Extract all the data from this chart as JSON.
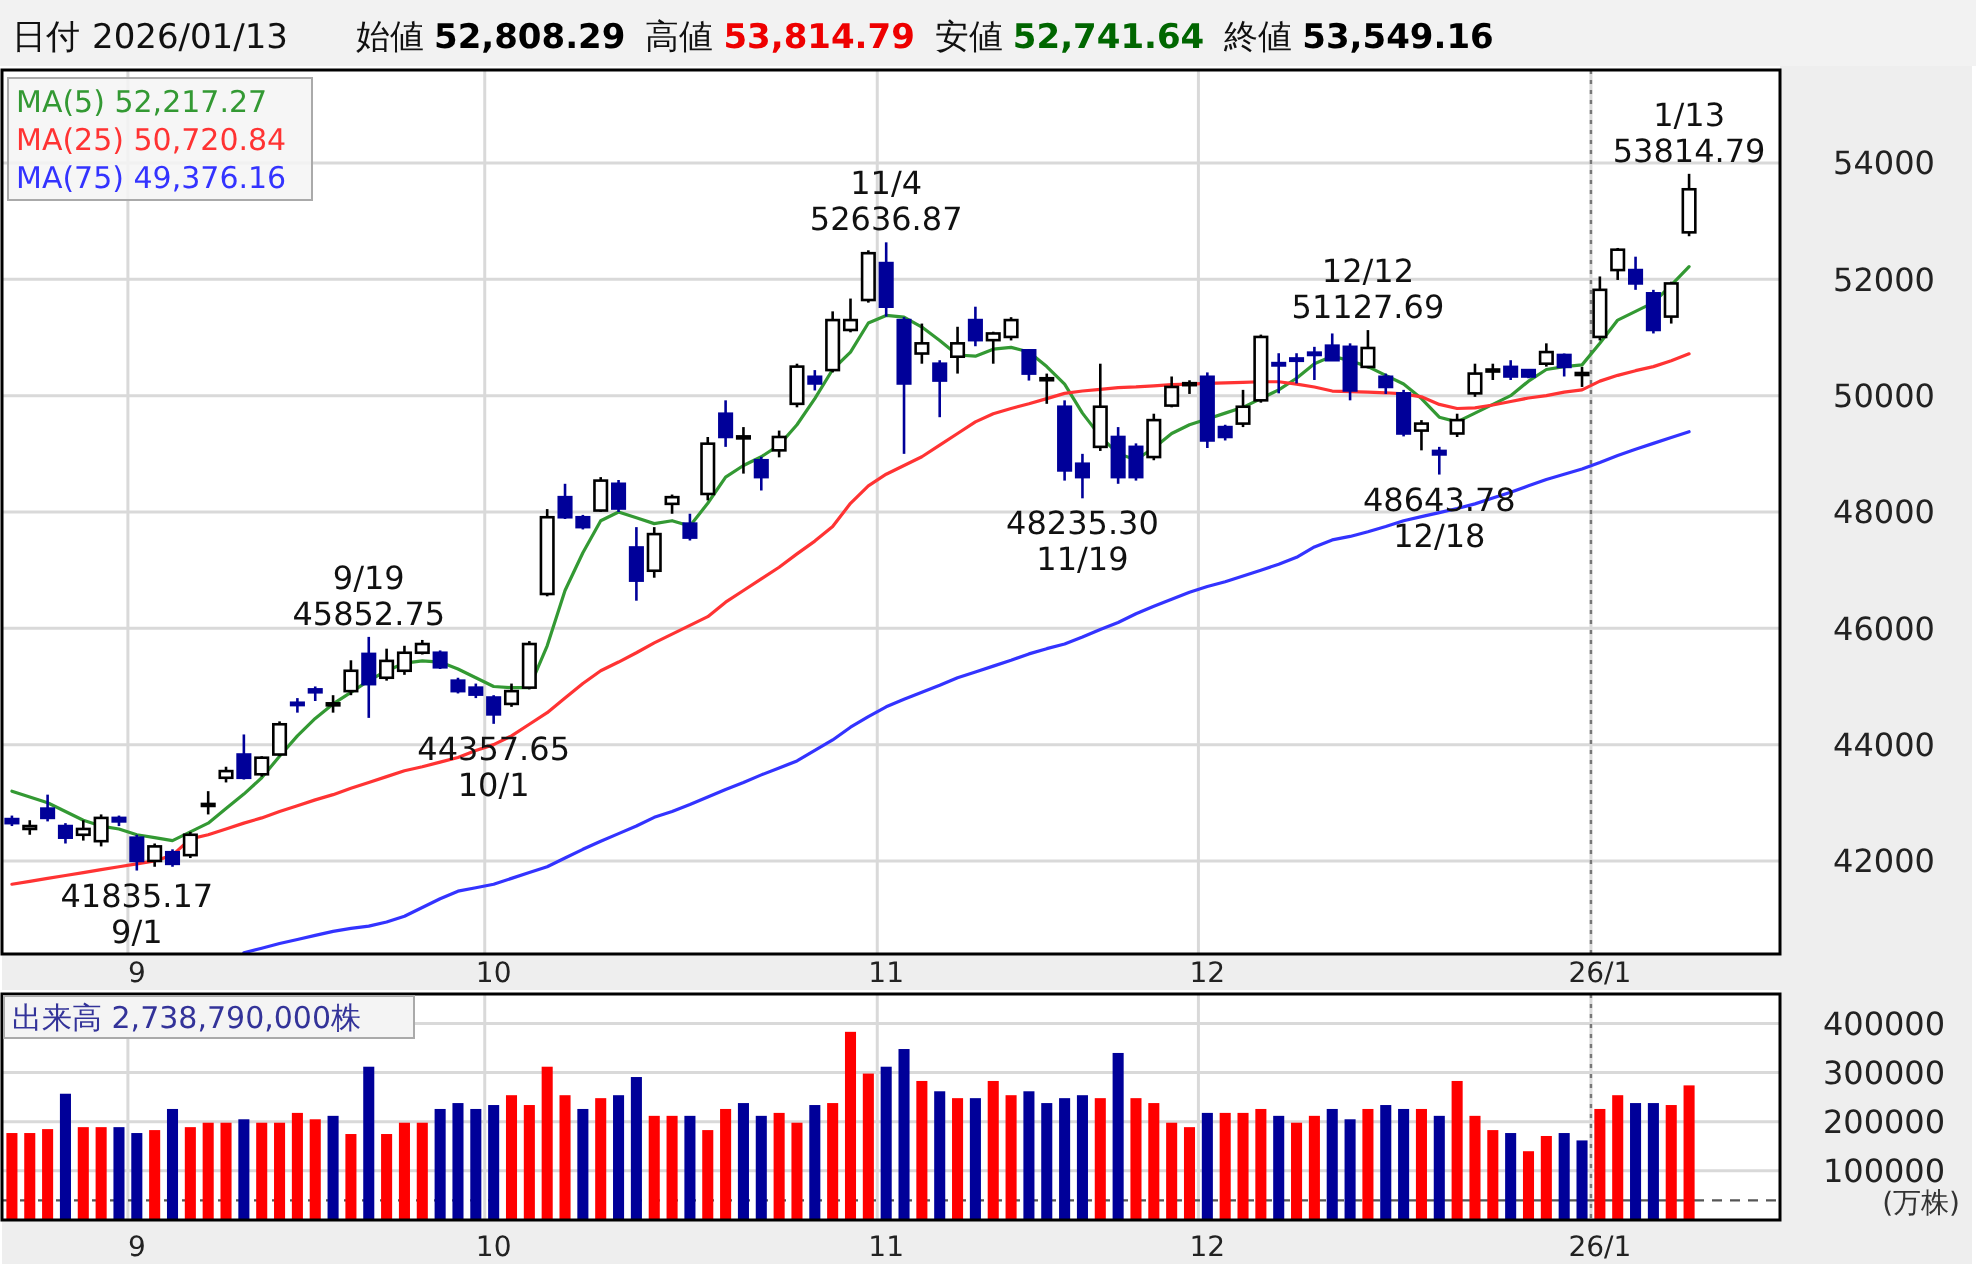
{
  "chart_data": [
    {
      "type": "candlestick",
      "title": "日付 2026/01/13",
      "categories": [
        null,
        null,
        null,
        null,
        null,
        null,
        null,
        "9",
        null,
        null,
        null,
        null,
        null,
        null,
        null,
        null,
        null,
        null,
        null,
        null,
        null,
        null,
        null,
        null,
        null,
        null,
        null,
        "10",
        null,
        null,
        null,
        null,
        null,
        null,
        null,
        null,
        null,
        null,
        null,
        null,
        null,
        null,
        null,
        null,
        null,
        null,
        null,
        null,
        null,
        "11",
        null,
        null,
        null,
        null,
        null,
        null,
        null,
        null,
        null,
        null,
        null,
        null,
        null,
        null,
        null,
        null,
        null,
        "12",
        null,
        null,
        null,
        null,
        null,
        null,
        null,
        null,
        null,
        null,
        null,
        null,
        null,
        null,
        null,
        null,
        null,
        null,
        null,
        null,
        null,
        "26/1",
        null,
        null,
        null,
        null,
        null
      ],
      "ohlc": [
        [
          42720,
          42780,
          42600,
          42650
        ],
        [
          42550,
          42700,
          42450,
          42600
        ],
        [
          42900,
          43140,
          42680,
          42740
        ],
        [
          42600,
          42650,
          42300,
          42400
        ],
        [
          42450,
          42700,
          42350,
          42550
        ],
        [
          42340,
          42800,
          42250,
          42740
        ],
        [
          42740,
          42780,
          42600,
          42680
        ],
        [
          42400,
          42450,
          41835.17,
          42000
        ],
        [
          42000,
          42300,
          41900,
          42250
        ],
        [
          42150,
          42200,
          41900,
          41950
        ],
        [
          42100,
          42500,
          42050,
          42450
        ],
        [
          42960,
          43200,
          42800,
          42980
        ],
        [
          43430,
          43620,
          43350,
          43545
        ],
        [
          43830,
          44175,
          43400,
          43430
        ],
        [
          43490,
          43800,
          43450,
          43775
        ],
        [
          43830,
          44400,
          43800,
          44350
        ],
        [
          44720,
          44800,
          44550,
          44680
        ],
        [
          44950,
          45000,
          44750,
          44900
        ],
        [
          44700,
          44850,
          44550,
          44710
        ],
        [
          44920,
          45450,
          44850,
          45270
        ],
        [
          45560,
          45852.75,
          44460,
          45040
        ],
        [
          45150,
          45650,
          45100,
          45440
        ],
        [
          45270,
          45700,
          45200,
          45580
        ],
        [
          45580,
          45800,
          45550,
          45730
        ],
        [
          45580,
          45620,
          45300,
          45330
        ],
        [
          45100,
          45150,
          44880,
          44920
        ],
        [
          44980,
          45050,
          44800,
          44860
        ],
        [
          44810,
          44850,
          44357.65,
          44520
        ],
        [
          44700,
          45050,
          44650,
          44920
        ],
        [
          44980,
          45780,
          44950,
          45730
        ],
        [
          46590,
          48050,
          46550,
          47910
        ],
        [
          48255,
          48485,
          47880,
          47910
        ],
        [
          47910,
          47950,
          47700,
          47740
        ],
        [
          48025,
          48600,
          48000,
          48540
        ],
        [
          48485,
          48550,
          48000,
          48060
        ],
        [
          47390,
          47740,
          46475,
          46820
        ],
        [
          46990,
          47740,
          46870,
          47620
        ],
        [
          48140,
          48300,
          47970,
          48255
        ],
        [
          47800,
          47970,
          47510,
          47560
        ],
        [
          48310,
          49290,
          48200,
          49175
        ],
        [
          49690,
          49920,
          49120,
          49290
        ],
        [
          49290,
          49460,
          48660,
          49300
        ],
        [
          48890,
          48950,
          48370,
          48600
        ],
        [
          49060,
          49400,
          48940,
          49290
        ],
        [
          49860,
          50550,
          49800,
          50500
        ],
        [
          50325,
          50440,
          50090,
          50210
        ],
        [
          50440,
          51450,
          50400,
          51300
        ],
        [
          51130,
          51670,
          51090,
          51300
        ],
        [
          51645,
          52500,
          51600,
          52450
        ],
        [
          52280,
          52636.87,
          51360,
          51530
        ],
        [
          51300,
          51350,
          49000,
          50210
        ],
        [
          50725,
          51240,
          50550,
          50900
        ],
        [
          50550,
          50610,
          49630,
          50260
        ],
        [
          50670,
          51185,
          50380,
          50900
        ],
        [
          51300,
          51530,
          50850,
          50955
        ],
        [
          50955,
          51100,
          50550,
          51070
        ],
        [
          51010,
          51350,
          50950,
          51300
        ],
        [
          50780,
          50800,
          50260,
          50380
        ],
        [
          50290,
          50380,
          49860,
          50300
        ],
        [
          49810,
          49920,
          48540,
          48715
        ],
        [
          48830,
          49000,
          48235.3,
          48600
        ],
        [
          49120,
          50550,
          49050,
          49810
        ],
        [
          49290,
          49460,
          48485,
          48600
        ],
        [
          49120,
          49180,
          48540,
          48600
        ],
        [
          48945,
          49690,
          48890,
          49580
        ],
        [
          49830,
          50330,
          49800,
          50150
        ],
        [
          50200,
          50265,
          50030,
          50215
        ],
        [
          50325,
          50400,
          49100,
          49230
        ],
        [
          49460,
          49500,
          49230,
          49290
        ],
        [
          49520,
          50100,
          49460,
          49810
        ],
        [
          49920,
          51050,
          49880,
          51010
        ],
        [
          50560,
          50730,
          50040,
          50520
        ],
        [
          50640,
          50730,
          50210,
          50600
        ],
        [
          50740,
          50840,
          50270,
          50700
        ],
        [
          50860,
          51070,
          50600,
          50610
        ],
        [
          50840,
          50900,
          49920,
          50090
        ],
        [
          50495,
          51127.69,
          50470,
          50820
        ],
        [
          50325,
          50380,
          50030,
          50150
        ],
        [
          50040,
          50100,
          49300,
          49350
        ],
        [
          49400,
          49580,
          49060,
          49520
        ],
        [
          49050,
          49120,
          48643.78,
          48990
        ],
        [
          49350,
          49690,
          49290,
          49580
        ],
        [
          50040,
          50550,
          49980,
          50380
        ],
        [
          50440,
          50550,
          50270,
          50450
        ],
        [
          50495,
          50610,
          50270,
          50330
        ],
        [
          50440,
          50450,
          50300,
          50330
        ],
        [
          50550,
          50900,
          50500,
          50750
        ],
        [
          50700,
          50725,
          50330,
          50495
        ],
        [
          50380,
          50495,
          50150,
          50390
        ],
        [
          51010,
          52050,
          50950,
          51820
        ],
        [
          52160,
          52540,
          51990,
          52510
        ],
        [
          52160,
          52390,
          51820,
          51930
        ],
        [
          51760,
          51820,
          51070,
          51130
        ],
        [
          51360,
          51960,
          51240,
          51930
        ],
        [
          52808.29,
          53814.79,
          52741.64,
          53549.16
        ]
      ],
      "colors": [
        "#000099",
        "#ffffff",
        "#000099",
        "#000099",
        "#ffffff",
        "#ffffff",
        "#000099",
        "#000099",
        "#ffffff",
        "#000099",
        "#ffffff",
        "#ffffff",
        "#ffffff",
        "#000099",
        "#ffffff",
        "#ffffff",
        "#000099",
        "#000099",
        "#ffffff",
        "#ffffff",
        "#000099",
        "#ffffff",
        "#ffffff",
        "#ffffff",
        "#000099",
        "#000099",
        "#000099",
        "#000099",
        "#ffffff",
        "#ffffff",
        "#ffffff",
        "#000099",
        "#000099",
        "#ffffff",
        "#000099",
        "#000099",
        "#ffffff",
        "#ffffff",
        "#000099",
        "#ffffff",
        "#000099",
        "#ffffff",
        "#000099",
        "#ffffff",
        "#ffffff",
        "#000099",
        "#ffffff",
        "#ffffff",
        "#ffffff",
        "#000099",
        "#000099",
        "#ffffff",
        "#000099",
        "#ffffff",
        "#000099",
        "#ffffff",
        "#ffffff",
        "#000099",
        "#ffffff",
        "#000099",
        "#000099",
        "#ffffff",
        "#000099",
        "#000099",
        "#ffffff",
        "#ffffff",
        "#ffffff",
        "#000099",
        "#000099",
        "#ffffff",
        "#ffffff",
        "#000099",
        "#000099",
        "#000099",
        "#000099",
        "#000099",
        "#ffffff",
        "#000099",
        "#000099",
        "#ffffff",
        "#000099",
        "#ffffff",
        "#ffffff",
        "#ffffff",
        "#000099",
        "#000099",
        "#ffffff",
        "#000099",
        "#ffffff",
        "#ffffff",
        "#ffffff",
        "#000099",
        "#000099",
        "#ffffff",
        "#ffffff"
      ],
      "series": [
        {
          "type": "line",
          "name": "MA(5) 52,217.27",
          "color": "#339933",
          "values": [
            43200,
            43100,
            43000,
            42850,
            42700,
            42600,
            42550,
            42450,
            42400,
            42350,
            42500,
            42650,
            42900,
            43150,
            43430,
            43800,
            44150,
            44450,
            44700,
            44900,
            45100,
            45270,
            45400,
            45440,
            45420,
            45300,
            45150,
            45000,
            44980,
            44980,
            45700,
            46650,
            47300,
            47850,
            48000,
            47900,
            47800,
            47850,
            47760,
            48150,
            48600,
            48800,
            48950,
            49150,
            49500,
            49950,
            50450,
            50750,
            51250,
            51380,
            51350,
            51180,
            50950,
            50700,
            50680,
            50800,
            50830,
            50750,
            50500,
            50200,
            49700,
            49300,
            49000,
            48900,
            49100,
            49350,
            49500,
            49600,
            49700,
            49800,
            49950,
            50100,
            50300,
            50550,
            50680,
            50600,
            50500,
            50350,
            50200,
            49950,
            49630,
            49550,
            49700,
            49850,
            50000,
            50250,
            50450,
            50500,
            50530,
            50900,
            51300,
            51450,
            51600,
            51900,
            52220
          ]
        },
        {
          "type": "line",
          "name": "MA(25) 50,720.84",
          "color": "#ff3333",
          "values": [
            41600,
            41650,
            41700,
            41750,
            41800,
            41850,
            41900,
            41950,
            42000,
            42100,
            42380,
            42450,
            42550,
            42650,
            42740,
            42850,
            42950,
            43050,
            43140,
            43250,
            43350,
            43450,
            43550,
            43620,
            43700,
            43780,
            43900,
            44000,
            44150,
            44350,
            44550,
            44800,
            45050,
            45270,
            45420,
            45580,
            45750,
            45900,
            46050,
            46200,
            46450,
            46650,
            46850,
            47050,
            47280,
            47500,
            47750,
            48150,
            48450,
            48650,
            48800,
            48950,
            49150,
            49350,
            49550,
            49690,
            49780,
            49860,
            49950,
            50040,
            50080,
            50110,
            50140,
            50150,
            50170,
            50190,
            50200,
            50210,
            50220,
            50230,
            50240,
            50240,
            50200,
            50150,
            50080,
            50070,
            50060,
            50050,
            50030,
            49980,
            49850,
            49780,
            49790,
            49840,
            49900,
            49960,
            50000,
            50060,
            50100,
            50250,
            50350,
            50430,
            50500,
            50600,
            50720
          ]
        },
        {
          "type": "line",
          "name": "MA(75) 49,376.16",
          "color": "#3333ff",
          "values": [
            null,
            null,
            null,
            null,
            null,
            null,
            null,
            null,
            null,
            null,
            null,
            null,
            null,
            40420,
            40500,
            40580,
            40650,
            40720,
            40790,
            40840,
            40880,
            40950,
            41050,
            41200,
            41350,
            41480,
            41540,
            41600,
            41700,
            41800,
            41900,
            42050,
            42200,
            42340,
            42470,
            42600,
            42750,
            42850,
            42970,
            43100,
            43230,
            43350,
            43480,
            43600,
            43720,
            43900,
            44080,
            44300,
            44480,
            44650,
            44780,
            44900,
            45020,
            45150,
            45250,
            45350,
            45450,
            45560,
            45650,
            45730,
            45850,
            45980,
            46100,
            46250,
            46380,
            46500,
            46620,
            46720,
            46800,
            46900,
            47000,
            47100,
            47220,
            47400,
            47520,
            47580,
            47660,
            47750,
            47850,
            47920,
            47990,
            48060,
            48140,
            48240,
            48340,
            48450,
            48560,
            48650,
            48740,
            48850,
            48970,
            49080,
            49180,
            49280,
            49380
          ]
        }
      ],
      "ylim": [
        40400,
        55600
      ],
      "yticks": [
        42000,
        44000,
        46000,
        48000,
        50000,
        52000,
        54000
      ],
      "grid": true,
      "legend": "top left",
      "ref_lines": [
        {
          "axis": "x",
          "value": "26/1",
          "line_style": "dotted",
          "color": "#777777"
        }
      ],
      "annotations": [
        "始値 52,808.29",
        "高値 53,814.79",
        "安値 52,741.64",
        "終値 53,549.16",
        {
          "text": "41835.17\n9/1",
          "y": 41835.17
        },
        {
          "text": "9/19\n45852.75",
          "y": 45852.75
        },
        {
          "text": "44357.65\n10/1",
          "y": 44357.65
        },
        {
          "text": "11/4\n52636.87",
          "y": 52636.87
        },
        {
          "text": "48235.30\n11/19",
          "y": 48235.3
        },
        {
          "text": "12/12\n51127.69",
          "y": 51127.69
        },
        {
          "text": "48643.78\n12/18",
          "y": 48643.78
        },
        {
          "text": "1/13\n53814.79",
          "y": 53814.79
        }
      ]
    },
    {
      "type": "bar",
      "title": "出来高 2,738,790,000株",
      "ylabel": "(万株)",
      "categories": [
        null,
        null,
        null,
        null,
        null,
        null,
        null,
        "9",
        null,
        null,
        null,
        null,
        null,
        null,
        null,
        null,
        null,
        null,
        null,
        null,
        null,
        null,
        null,
        null,
        null,
        null,
        null,
        "10",
        null,
        null,
        null,
        null,
        null,
        null,
        null,
        null,
        null,
        null,
        null,
        null,
        null,
        null,
        null,
        null,
        null,
        null,
        null,
        null,
        null,
        "11",
        null,
        null,
        null,
        null,
        null,
        null,
        null,
        null,
        null,
        null,
        null,
        null,
        null,
        null,
        null,
        null,
        null,
        "12",
        null,
        null,
        null,
        null,
        null,
        null,
        null,
        null,
        null,
        null,
        null,
        null,
        null,
        null,
        null,
        null,
        null,
        null,
        null,
        null,
        null,
        "26/1",
        null,
        null,
        null,
        null,
        null
      ],
      "values": [
        177000,
        177000,
        185000,
        257000,
        189000,
        189000,
        189000,
        177000,
        183000,
        226000,
        189000,
        198000,
        198000,
        205000,
        198000,
        198000,
        218000,
        205000,
        212000,
        175000,
        312000,
        175000,
        198000,
        198000,
        226000,
        238000,
        226000,
        234000,
        254000,
        234000,
        312000,
        254000,
        226000,
        248000,
        254000,
        291000,
        212000,
        212000,
        212000,
        183000,
        226000,
        238000,
        212000,
        218000,
        198000,
        234000,
        238000,
        383000,
        298000,
        312000,
        348000,
        283000,
        262000,
        248000,
        248000,
        283000,
        254000,
        262000,
        238000,
        248000,
        254000,
        248000,
        340000,
        248000,
        238000,
        198000,
        189000,
        218000,
        218000,
        218000,
        226000,
        212000,
        198000,
        212000,
        226000,
        205000,
        226000,
        234000,
        226000,
        226000,
        212000,
        283000,
        212000,
        183000,
        177000,
        140000,
        171000,
        177000,
        162000,
        226000,
        254000,
        238000,
        238000,
        234000,
        274000
      ],
      "colors": [
        "#ff0000",
        "#ff0000",
        "#ff0000",
        "#000099",
        "#ff0000",
        "#ff0000",
        "#000099",
        "#000099",
        "#ff0000",
        "#000099",
        "#ff0000",
        "#ff0000",
        "#ff0000",
        "#000099",
        "#ff0000",
        "#ff0000",
        "#ff0000",
        "#ff0000",
        "#000099",
        "#ff0000",
        "#000099",
        "#ff0000",
        "#ff0000",
        "#ff0000",
        "#000099",
        "#000099",
        "#000099",
        "#000099",
        "#ff0000",
        "#ff0000",
        "#ff0000",
        "#ff0000",
        "#000099",
        "#ff0000",
        "#000099",
        "#000099",
        "#ff0000",
        "#ff0000",
        "#000099",
        "#ff0000",
        "#ff0000",
        "#000099",
        "#000099",
        "#ff0000",
        "#ff0000",
        "#000099",
        "#ff0000",
        "#ff0000",
        "#ff0000",
        "#000099",
        "#000099",
        "#ff0000",
        "#000099",
        "#ff0000",
        "#000099",
        "#ff0000",
        "#ff0000",
        "#000099",
        "#000099",
        "#000099",
        "#000099",
        "#ff0000",
        "#000099",
        "#ff0000",
        "#ff0000",
        "#ff0000",
        "#ff0000",
        "#000099",
        "#ff0000",
        "#ff0000",
        "#ff0000",
        "#000099",
        "#ff0000",
        "#ff0000",
        "#000099",
        "#000099",
        "#ff0000",
        "#000099",
        "#000099",
        "#ff0000",
        "#000099",
        "#ff0000",
        "#ff0000",
        "#ff0000",
        "#000099",
        "#ff0000",
        "#ff0000",
        "#000099",
        "#000099",
        "#ff0000",
        "#ff0000",
        "#000099",
        "#000099",
        "#ff0000",
        "#ff0000"
      ],
      "ylim": [
        0,
        460000
      ],
      "yticks": [
        100000,
        200000,
        300000,
        400000
      ],
      "grid": true,
      "ref_lines": [
        {
          "axis": "y",
          "value": 40000,
          "line_style": "dashed",
          "color": "#555555"
        },
        {
          "axis": "x",
          "value": "26/1",
          "line_style": "dotted",
          "color": "#777777"
        }
      ]
    }
  ]
}
